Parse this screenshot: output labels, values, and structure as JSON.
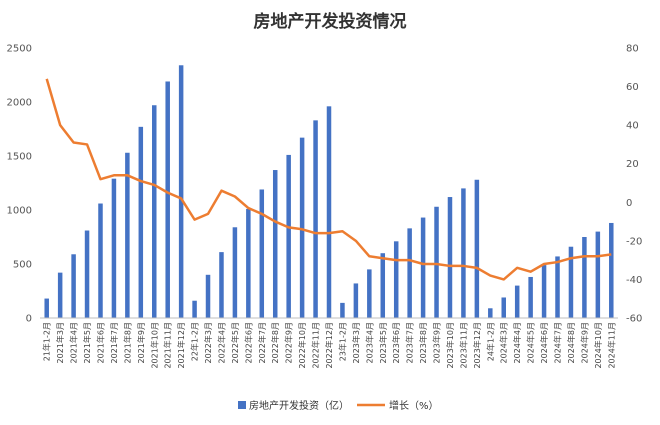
{
  "chart_data": {
    "type": "bar",
    "title": "房地产开发投资情况",
    "categories": [
      "21年1-2月",
      "2021年3月",
      "2021年4月",
      "2021年5月",
      "2021年6月",
      "2021年7月",
      "2021年8月",
      "2021年9月",
      "2021年10月",
      "2021年11月",
      "2021年12月",
      "22年1-2月",
      "2022年3月",
      "2022年4月",
      "2022年5月",
      "2022年6月",
      "2022年7月",
      "2022年8月",
      "2022年9月",
      "2022年10月",
      "2022年11月",
      "2022年12月",
      "23年1-2月",
      "2023年3月",
      "2023年4月",
      "2023年5月",
      "2023年6月",
      "2023年7月",
      "2023年8月",
      "2023年9月",
      "2023年10月",
      "2023年11月",
      "2023年12月",
      "24年1-2月",
      "2024年3月",
      "2024年4月",
      "2024年5月",
      "2024年6月",
      "2024年7月",
      "2024年8月",
      "2024年9月",
      "2024年10月",
      "2024年11月"
    ],
    "series": [
      {
        "name": "房地产开发投资（亿）",
        "type": "bar",
        "axis": "left",
        "color": "#4472C4",
        "values": [
          180,
          420,
          590,
          810,
          1060,
          1290,
          1530,
          1770,
          1970,
          2190,
          2340,
          160,
          400,
          610,
          840,
          1010,
          1190,
          1370,
          1510,
          1670,
          1830,
          1960,
          140,
          320,
          450,
          600,
          710,
          830,
          930,
          1030,
          1120,
          1200,
          1280,
          90,
          190,
          300,
          380,
          490,
          570,
          660,
          750,
          800,
          880
        ]
      },
      {
        "name": "增长（%）",
        "type": "line",
        "axis": "right",
        "color": "#ED7D31",
        "values": [
          64,
          40,
          31,
          30,
          12,
          14,
          14,
          11,
          9,
          5,
          2,
          -9,
          -6,
          6,
          3,
          -3,
          -6,
          -10,
          -13,
          -14,
          -16,
          -16,
          -15,
          -20,
          -28,
          -29,
          -30,
          -30,
          -32,
          -32,
          -33,
          -33,
          -34,
          -38,
          -40,
          -34,
          -36,
          -32,
          -31,
          -29,
          -28,
          -28,
          -27
        ]
      }
    ],
    "y_left": {
      "ylim": [
        0,
        2500
      ],
      "ticks": [
        "0",
        "500",
        "1000",
        "1500",
        "2000",
        "2500"
      ]
    },
    "y_right": {
      "ylim": [
        -60,
        80
      ],
      "ticks": [
        "-60",
        "-40",
        "-20",
        "0",
        "20",
        "40",
        "60",
        "80"
      ]
    },
    "grid": false,
    "legend": {
      "placement": "bottom",
      "entries": [
        "房地产开发投资（亿）",
        "增长（%）"
      ]
    }
  }
}
